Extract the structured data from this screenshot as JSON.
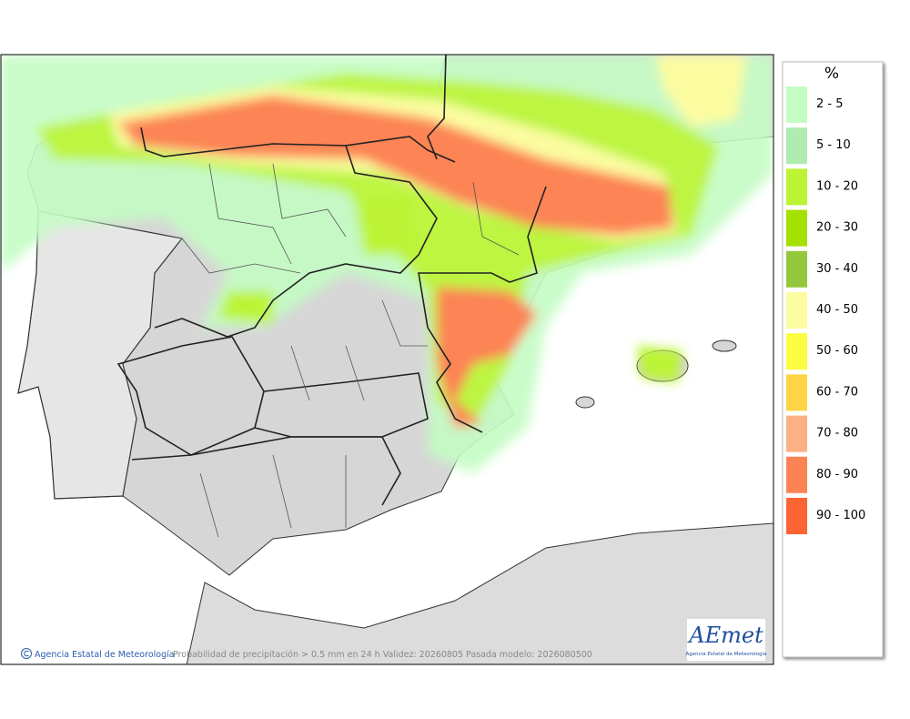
{
  "map": {
    "credit": "Agencia Estatal de Meteorología",
    "caption": "Probabilidad de precipitación > 0.5 mm en 24 h Validez: 20260805 Pasada modelo: 2026080500",
    "logo": "AEmet",
    "logo_subtitle": "Agencia Estatal de Meteorología"
  },
  "legend": {
    "title": "%",
    "classes": [
      {
        "label": "2 - 5",
        "color": "#c4fcc4"
      },
      {
        "label": "5 - 10",
        "color": "#b0ecb0"
      },
      {
        "label": "10 - 20",
        "color": "#bcf434"
      },
      {
        "label": "20 - 30",
        "color": "#a4e000"
      },
      {
        "label": "30 - 40",
        "color": "#94c83c"
      },
      {
        "label": "40 - 50",
        "color": "#fcfca0"
      },
      {
        "label": "50 - 60",
        "color": "#fcfc40"
      },
      {
        "label": "60 - 70",
        "color": "#fcd444"
      },
      {
        "label": "70 - 80",
        "color": "#fcb084"
      },
      {
        "label": "80 - 90",
        "color": "#fc8454"
      },
      {
        "label": "90 - 100",
        "color": "#fc6434"
      }
    ]
  }
}
